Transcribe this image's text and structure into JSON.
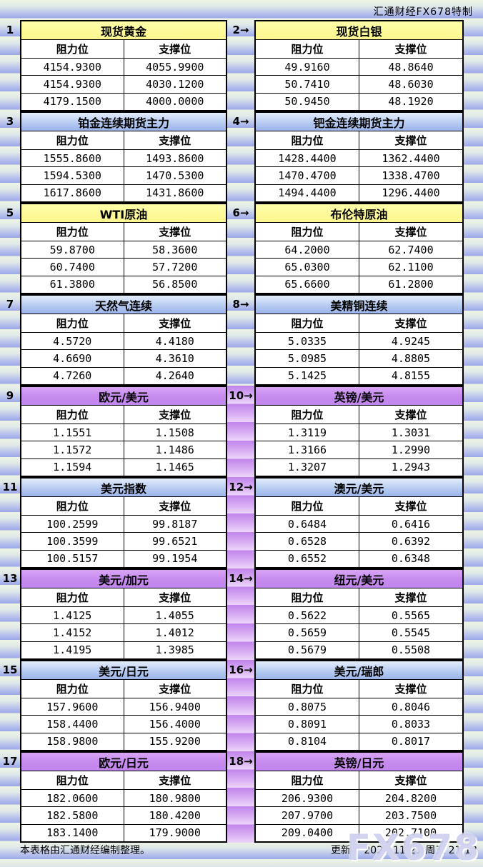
{
  "header": {
    "brand": "汇通财经FX678特制"
  },
  "labels": {
    "resistance": "阻力位",
    "support": "支撑位"
  },
  "panels": [
    {
      "num": "1",
      "title": "现货黄金",
      "theme": "yellow",
      "rows": [
        [
          "4154.9300",
          "4055.9900"
        ],
        [
          "4154.9300",
          "4030.1200"
        ],
        [
          "4179.1500",
          "4000.0000"
        ]
      ]
    },
    {
      "num": "2→",
      "title": "现货白银",
      "theme": "yellow",
      "rows": [
        [
          "49.9160",
          "48.8640"
        ],
        [
          "50.7410",
          "48.6030"
        ],
        [
          "50.9450",
          "48.1920"
        ]
      ]
    },
    {
      "num": "3",
      "title": "铂金连续期货主力",
      "theme": "blue",
      "rows": [
        [
          "1555.8600",
          "1493.8600"
        ],
        [
          "1594.5300",
          "1470.5300"
        ],
        [
          "1617.8600",
          "1431.8600"
        ]
      ]
    },
    {
      "num": "4→",
      "title": "钯金连续期货主力",
      "theme": "blue",
      "rows": [
        [
          "1428.4400",
          "1362.4400"
        ],
        [
          "1470.4700",
          "1338.4700"
        ],
        [
          "1494.4400",
          "1296.4400"
        ]
      ]
    },
    {
      "num": "5",
      "title": "WTI原油",
      "theme": "yellow",
      "rows": [
        [
          "59.8700",
          "58.3600"
        ],
        [
          "60.7400",
          "57.7200"
        ],
        [
          "61.3800",
          "56.8500"
        ]
      ]
    },
    {
      "num": "6→",
      "title": "布伦特原油",
      "theme": "yellow",
      "rows": [
        [
          "64.2000",
          "62.7400"
        ],
        [
          "65.0300",
          "62.1100"
        ],
        [
          "65.6600",
          "61.2800"
        ]
      ]
    },
    {
      "num": "7",
      "title": "天然气连续",
      "theme": "blue",
      "rows": [
        [
          "4.5720",
          "4.4180"
        ],
        [
          "4.6690",
          "4.3610"
        ],
        [
          "4.7260",
          "4.2640"
        ]
      ]
    },
    {
      "num": "8→",
      "title": "美精铜连续",
      "theme": "blue",
      "rows": [
        [
          "5.0335",
          "4.9245"
        ],
        [
          "5.0985",
          "4.8805"
        ],
        [
          "5.1425",
          "4.8155"
        ]
      ]
    },
    {
      "num": "9",
      "title": "欧元/美元",
      "theme": "purple",
      "rows": [
        [
          "1.1551",
          "1.1508"
        ],
        [
          "1.1572",
          "1.1486"
        ],
        [
          "1.1594",
          "1.1465"
        ]
      ]
    },
    {
      "num": "10→",
      "title": "英镑/美元",
      "theme": "purple",
      "rows": [
        [
          "1.3119",
          "1.3031"
        ],
        [
          "1.3166",
          "1.2990"
        ],
        [
          "1.3207",
          "1.2943"
        ]
      ]
    },
    {
      "num": "11",
      "title": "美元指数",
      "theme": "blue",
      "rows": [
        [
          "100.2599",
          "99.8187"
        ],
        [
          "100.3599",
          "99.6521"
        ],
        [
          "100.5157",
          "99.1954"
        ]
      ]
    },
    {
      "num": "12→",
      "title": "澳元/美元",
      "theme": "blue",
      "rows": [
        [
          "0.6484",
          "0.6416"
        ],
        [
          "0.6528",
          "0.6392"
        ],
        [
          "0.6552",
          "0.6348"
        ]
      ]
    },
    {
      "num": "13",
      "title": "美元/加元",
      "theme": "purple",
      "rows": [
        [
          "1.4125",
          "1.4055"
        ],
        [
          "1.4152",
          "1.4012"
        ],
        [
          "1.4195",
          "1.3985"
        ]
      ]
    },
    {
      "num": "14→",
      "title": "纽元/美元",
      "theme": "purple",
      "rows": [
        [
          "0.5622",
          "0.5565"
        ],
        [
          "0.5659",
          "0.5545"
        ],
        [
          "0.5679",
          "0.5508"
        ]
      ]
    },
    {
      "num": "15",
      "title": "美元/日元",
      "theme": "blue",
      "rows": [
        [
          "157.9600",
          "156.9400"
        ],
        [
          "158.4400",
          "156.4000"
        ],
        [
          "158.9800",
          "155.9200"
        ]
      ]
    },
    {
      "num": "16→",
      "title": "美元/瑞郎",
      "theme": "blue",
      "rows": [
        [
          "0.8075",
          "0.8046"
        ],
        [
          "0.8091",
          "0.8033"
        ],
        [
          "0.8104",
          "0.8017"
        ]
      ]
    },
    {
      "num": "17",
      "title": "欧元/日元",
      "theme": "purple",
      "rows": [
        [
          "182.0600",
          "180.9800"
        ],
        [
          "182.5800",
          "180.4200"
        ],
        [
          "183.1400",
          "179.9000"
        ]
      ]
    },
    {
      "num": "18→",
      "title": "英镑/日元",
      "theme": "purple",
      "rows": [
        [
          "206.9300",
          "204.8200"
        ],
        [
          "207.9700",
          "203.7500"
        ],
        [
          "209.0400",
          "202.7100"
        ]
      ]
    }
  ],
  "footer": {
    "note": "本表格由汇通财经编制整理。",
    "updated": "更新于 2025-11-21 周五 21:13"
  },
  "watermark": "FX678",
  "colors": {
    "title_yellow": "#ffff99",
    "title_blue": "#b9cdf3",
    "title_purple": "#c88ff0",
    "band_blue": "#a0ace8",
    "band_purple": "#c184ea",
    "cell_bg": "#ffffff",
    "border": "#000000",
    "watermark": "#c7c9ec"
  }
}
